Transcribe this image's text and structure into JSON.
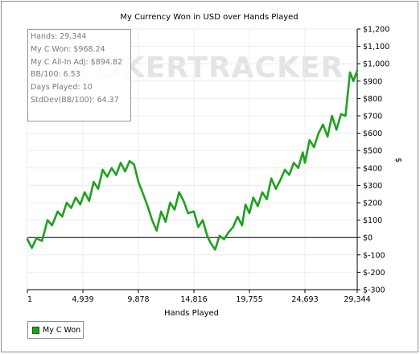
{
  "chart_data": {
    "type": "line",
    "title": "My Currency Won in USD over Hands Played",
    "xlabel": "Hands Played",
    "ylabel": "$",
    "xlim": [
      1,
      29344
    ],
    "ylim": [
      -300,
      1200
    ],
    "x_ticks": [
      1,
      4939,
      9878,
      14816,
      19755,
      24693,
      29344
    ],
    "x_tick_labels": [
      "1",
      "4,939",
      "9,878",
      "14,816",
      "19,755",
      "24,693",
      "29,344"
    ],
    "y_ticks": [
      -300,
      -200,
      -100,
      0,
      100,
      200,
      300,
      400,
      500,
      600,
      700,
      800,
      900,
      1000,
      1100,
      1200
    ],
    "y_tick_labels": [
      "$-300",
      "$-200",
      "$-100",
      "$0",
      "$100",
      "$200",
      "$300",
      "$400",
      "$500",
      "$600",
      "$700",
      "$800",
      "$900",
      "$1,000",
      "$1,100",
      "$1,200"
    ],
    "grid": true,
    "legend_position": "bottom-left",
    "series": [
      {
        "name": "My C Won",
        "color": "#1fa11f",
        "x": [
          1,
          400,
          800,
          1300,
          1800,
          2200,
          2700,
          3100,
          3500,
          3900,
          4300,
          4700,
          5100,
          5500,
          5900,
          6300,
          6700,
          7100,
          7500,
          7900,
          8300,
          8700,
          9100,
          9500,
          9878,
          10300,
          10700,
          11100,
          11500,
          11900,
          12300,
          12700,
          13100,
          13500,
          13900,
          14300,
          14816,
          15200,
          15600,
          16000,
          16300,
          16700,
          17100,
          17500,
          17900,
          18300,
          18700,
          19100,
          19400,
          19755,
          20100,
          20500,
          20900,
          21300,
          21700,
          22100,
          22500,
          22900,
          23300,
          23700,
          24100,
          24500,
          24693,
          25100,
          25500,
          25900,
          26300,
          26700,
          27100,
          27500,
          27900,
          28300,
          28700,
          29000,
          29344
        ],
        "values": [
          -10,
          -60,
          -5,
          -20,
          100,
          70,
          150,
          120,
          200,
          170,
          230,
          190,
          260,
          210,
          320,
          280,
          390,
          350,
          400,
          360,
          430,
          380,
          440,
          420,
          320,
          250,
          180,
          100,
          40,
          150,
          90,
          200,
          160,
          260,
          210,
          140,
          150,
          60,
          100,
          10,
          -30,
          -70,
          10,
          -10,
          30,
          60,
          120,
          70,
          190,
          140,
          230,
          180,
          260,
          220,
          340,
          280,
          330,
          390,
          360,
          430,
          400,
          490,
          430,
          560,
          520,
          600,
          650,
          580,
          700,
          620,
          710,
          700,
          950,
          900,
          960
        ]
      }
    ]
  },
  "stats": {
    "hands": "Hands: 29,344",
    "my_c_won": "My C Won: $968.24",
    "all_in_adj": "My C All-In Adj: $894.82",
    "bb100": "BB/100: 6.53",
    "days_played": "Days Played: 10",
    "stddev": "StdDev(BB/100): 64.37"
  },
  "watermark": "POKERTRACKER"
}
